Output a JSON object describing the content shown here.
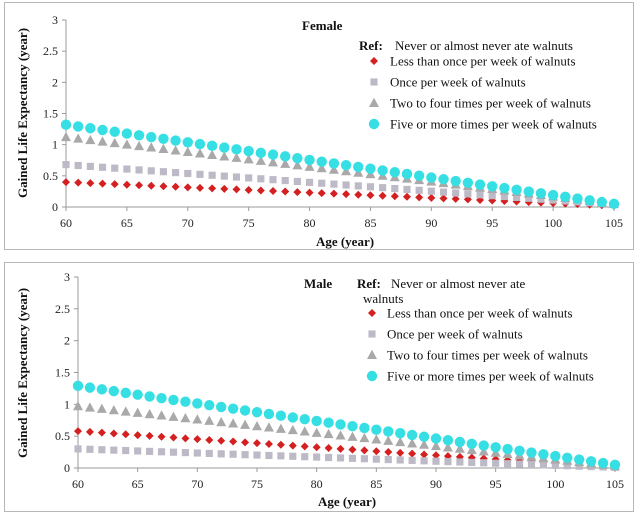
{
  "colors": {
    "ref": "#c0c0c0",
    "less_than_once": "#d42020",
    "once": "#bdb9c6",
    "two_to_four": "#a9a9a9",
    "five_or_more": "#35dfe4",
    "axis": "#9a9a9a"
  },
  "chart_data": [
    {
      "type": "scatter",
      "title": "Female",
      "ref_label": "Ref:",
      "ref_text": "Never or almost never ate walnuts",
      "xlabel": "Age (year)",
      "ylabel": "Gained Life Expectancy (year)",
      "xlim": [
        60,
        105
      ],
      "ylim": [
        0,
        3
      ],
      "x_ticks": [
        "60",
        "65",
        "70",
        "75",
        "80",
        "85",
        "90",
        "95",
        "100",
        "105"
      ],
      "y_ticks": [
        "0",
        "0.5",
        "1",
        "1.5",
        "2",
        "2.5",
        "3"
      ],
      "x_start": 60,
      "x_end": 105,
      "series": [
        {
          "name": "Less than once per week of walnuts",
          "marker": "diamond",
          "color_key": "less_than_once",
          "start": 0.4,
          "end": 0.02
        },
        {
          "name": "Once per week of walnuts",
          "marker": "square",
          "color_key": "once",
          "start": 0.68,
          "end": 0.04
        },
        {
          "name": "Two to four times per week of walnuts",
          "marker": "triangle",
          "color_key": "two_to_four",
          "start": 1.12,
          "end": 0.05
        },
        {
          "name": "Five or more times per week of walnuts",
          "marker": "circle",
          "color_key": "five_or_more",
          "start": 1.32,
          "end": 0.05
        }
      ]
    },
    {
      "type": "scatter",
      "title": "Male",
      "ref_label": "Ref:",
      "ref_text": "Never or almost never ate",
      "ref_text_2": "walnuts",
      "xlabel": "Age (year)",
      "ylabel": "Gained Life Expectancy (year)",
      "xlim": [
        60,
        105
      ],
      "ylim": [
        0,
        3
      ],
      "x_ticks": [
        "60",
        "65",
        "70",
        "75",
        "80",
        "85",
        "90",
        "95",
        "100",
        "105"
      ],
      "y_ticks": [
        "0",
        "0.5",
        "1",
        "1.5",
        "2",
        "2.5",
        "3"
      ],
      "x_start": 60,
      "x_end": 105,
      "series": [
        {
          "name": "Less than once per week of walnuts",
          "marker": "diamond",
          "color_key": "less_than_once",
          "start": 0.58,
          "end": 0.01
        },
        {
          "name": "Once per week of walnuts",
          "marker": "square",
          "color_key": "once",
          "start": 0.3,
          "end": 0.01
        },
        {
          "name": "Two to four times per week of walnuts",
          "marker": "triangle",
          "color_key": "two_to_four",
          "start": 0.97,
          "end": 0.03
        },
        {
          "name": "Five or more times per week of walnuts",
          "marker": "circle",
          "color_key": "five_or_more",
          "start": 1.29,
          "end": 0.05
        }
      ]
    }
  ]
}
